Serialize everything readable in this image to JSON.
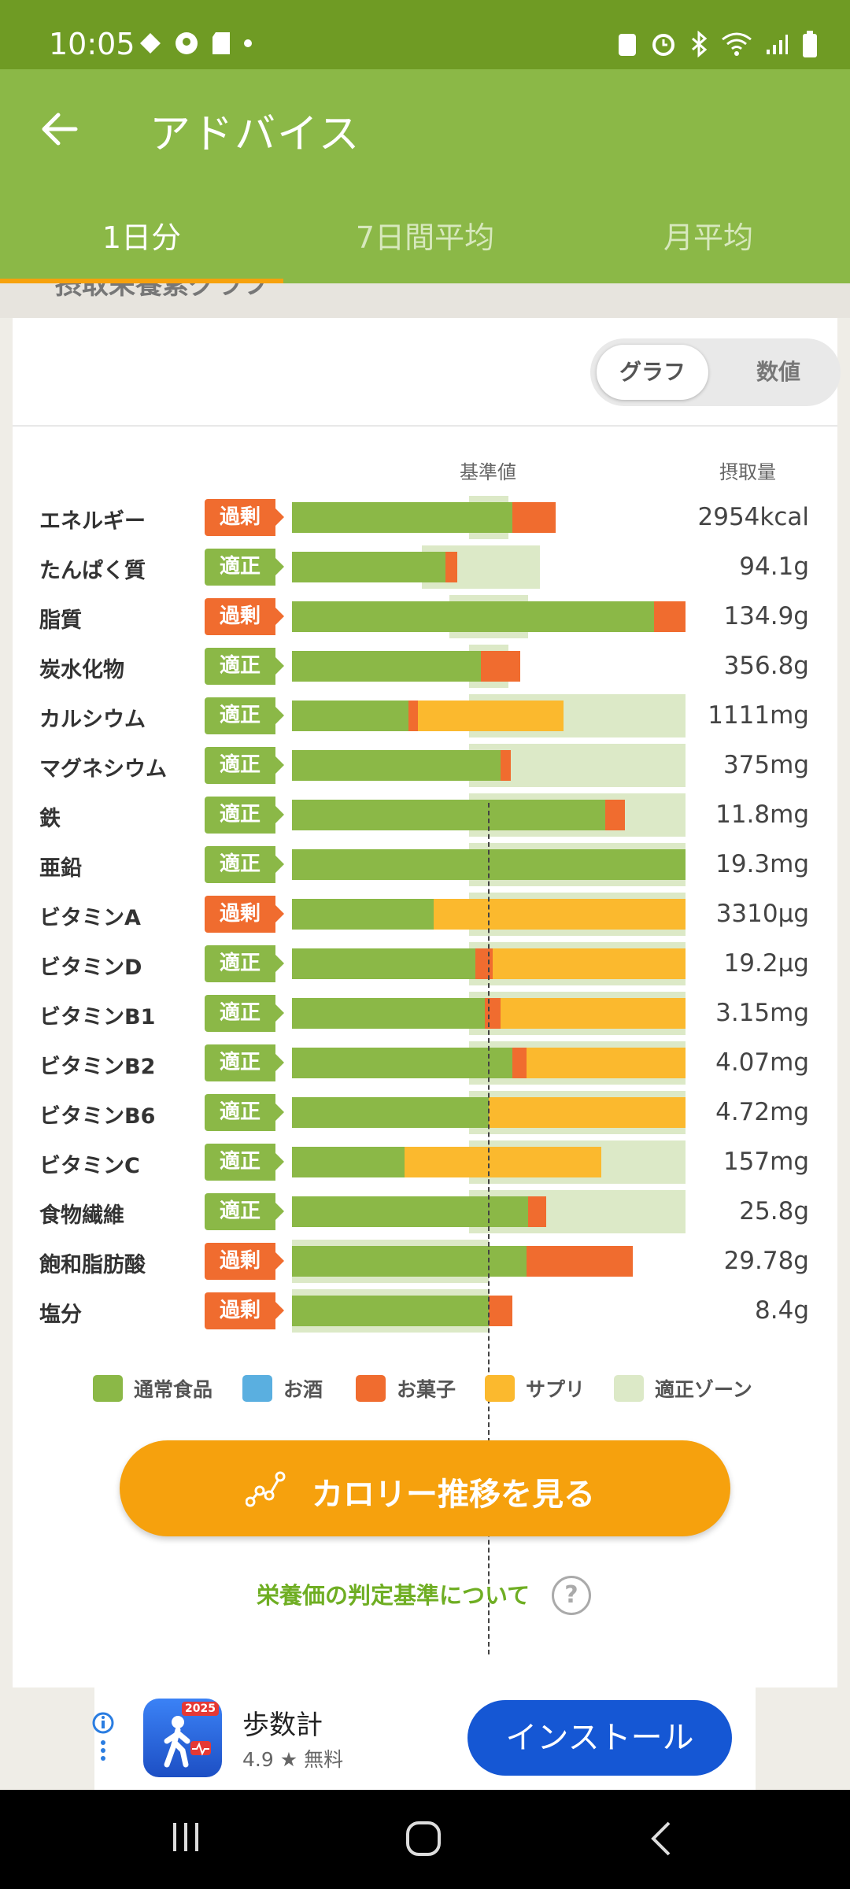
{
  "status": {
    "time": "10:05"
  },
  "appbar": {
    "title": "アドバイス",
    "back_label": "←"
  },
  "tabs": [
    {
      "label": "1日分"
    },
    {
      "label": "7日間平均"
    },
    {
      "label": "月平均"
    }
  ],
  "section": {
    "peek_title": "摂取栄養素グラフ"
  },
  "toggle": {
    "graph": "グラフ",
    "numeric": "数値"
  },
  "chart_headers": {
    "reference": "基準値",
    "intake": "摂取量"
  },
  "colors": {
    "normal_food": "#8bb847",
    "alcohol": "#5aafe0",
    "snacks": "#f06c2f",
    "supplement": "#fbb92e",
    "proper_zone": "#dce9c7"
  },
  "chart_data": {
    "type": "bar",
    "orientation": "horizontal-stacked",
    "reference_line_ratio": 0.5,
    "axis_max_ratio": 1.0,
    "series_names": [
      "通常食品",
      "お酒",
      "お菓子",
      "サプリ"
    ],
    "rows": [
      {
        "name": "エネルギー",
        "status": "過剰",
        "value": "2954kcal",
        "zone": [
          0.45,
          0.55
        ],
        "food": 0.56,
        "alcohol": 0,
        "snack": 0.11,
        "supp": 0
      },
      {
        "name": "たんぱく質",
        "status": "適正",
        "value": "94.1g",
        "zone": [
          0.33,
          0.63
        ],
        "food": 0.39,
        "alcohol": 0,
        "snack": 0.03,
        "supp": 0
      },
      {
        "name": "脂質",
        "status": "過剰",
        "value": "134.9g",
        "zone": [
          0.4,
          0.6
        ],
        "food": 0.92,
        "alcohol": 0,
        "snack": 0.08,
        "supp": 0
      },
      {
        "name": "炭水化物",
        "status": "適正",
        "value": "356.8g",
        "zone": [
          0.45,
          0.55
        ],
        "food": 0.48,
        "alcohol": 0,
        "snack": 0.1,
        "supp": 0
      },
      {
        "name": "カルシウム",
        "status": "適正",
        "value": "1111mg",
        "zone": [
          0.45,
          1.0
        ],
        "food": 0.295,
        "alcohol": 0,
        "snack": 0.025,
        "supp": 0.37
      },
      {
        "name": "マグネシウム",
        "status": "適正",
        "value": "375mg",
        "zone": [
          0.45,
          1.0
        ],
        "food": 0.53,
        "alcohol": 0,
        "snack": 0.025,
        "supp": 0
      },
      {
        "name": "鉄",
        "status": "適正",
        "value": "11.8mg",
        "zone": [
          0.45,
          1.0
        ],
        "food": 0.795,
        "alcohol": 0,
        "snack": 0.05,
        "supp": 0
      },
      {
        "name": "亜鉛",
        "status": "適正",
        "value": "19.3mg",
        "zone": [
          0.45,
          1.0
        ],
        "food": 1.0,
        "alcohol": 0,
        "snack": 0,
        "supp": 0
      },
      {
        "name": "ビタミンA",
        "status": "過剰",
        "value": "3310μg",
        "zone": [
          0.45,
          1.0
        ],
        "food": 0.36,
        "alcohol": 0,
        "snack": 0,
        "supp": 0.64
      },
      {
        "name": "ビタミンD",
        "status": "適正",
        "value": "19.2μg",
        "zone": [
          0.45,
          1.0
        ],
        "food": 0.465,
        "alcohol": 0,
        "snack": 0.045,
        "supp": 0.49
      },
      {
        "name": "ビタミンB1",
        "status": "適正",
        "value": "3.15mg",
        "zone": [
          0.45,
          1.0
        ],
        "food": 0.49,
        "alcohol": 0,
        "snack": 0.04,
        "supp": 0.47
      },
      {
        "name": "ビタミンB2",
        "status": "適正",
        "value": "4.07mg",
        "zone": [
          0.45,
          1.0
        ],
        "food": 0.56,
        "alcohol": 0,
        "snack": 0.035,
        "supp": 0.405
      },
      {
        "name": "ビタミンB6",
        "status": "適正",
        "value": "4.72mg",
        "zone": [
          0.45,
          1.0
        ],
        "food": 0.5,
        "alcohol": 0,
        "snack": 0,
        "supp": 0.5
      },
      {
        "name": "ビタミンC",
        "status": "適正",
        "value": "157mg",
        "zone": [
          0.45,
          1.0
        ],
        "food": 0.285,
        "alcohol": 0,
        "snack": 0,
        "supp": 0.5
      },
      {
        "name": "食物繊維",
        "status": "適正",
        "value": "25.8g",
        "zone": [
          0.45,
          1.0
        ],
        "food": 0.6,
        "alcohol": 0,
        "snack": 0.045,
        "supp": 0
      },
      {
        "name": "飽和脂肪酸",
        "status": "過剰",
        "value": "29.78g",
        "zone": [
          0.0,
          0.5
        ],
        "food": 0.595,
        "alcohol": 0,
        "snack": 0.27,
        "supp": 0
      },
      {
        "name": "塩分",
        "status": "過剰",
        "value": "8.4g",
        "zone": [
          0.0,
          0.5
        ],
        "food": 0.5,
        "alcohol": 0,
        "snack": 0.06,
        "supp": 0
      }
    ]
  },
  "legend": [
    {
      "label": "通常食品",
      "color": "#8bb847"
    },
    {
      "label": "お酒",
      "color": "#5aafe0"
    },
    {
      "label": "お菓子",
      "color": "#f06c2f"
    },
    {
      "label": "サプリ",
      "color": "#fbb92e"
    },
    {
      "label": "適正ゾーン",
      "color": "#dce9c7"
    }
  ],
  "cta": {
    "label": "カロリー推移を見る"
  },
  "info_link": {
    "label": "栄養価の判定基準について",
    "help_glyph": "?"
  },
  "ad": {
    "app_name": "歩数計",
    "rating": "4.9",
    "price": "無料",
    "install": "インストール",
    "badge_year": "2025"
  }
}
